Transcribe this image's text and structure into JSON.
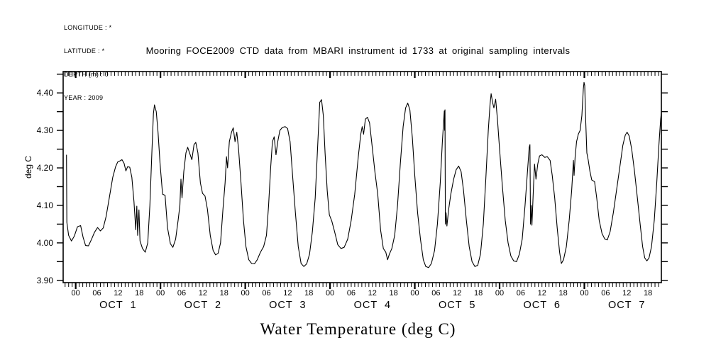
{
  "meta_block": {
    "lines": [
      "LONGITUDE : *",
      "LATITUDE : *",
      "DEPTH (m) : 0",
      "YEAR : 2009"
    ]
  },
  "title": "Mooring FOCE2009 CTD data from MBARI instrument id 1733 at original sampling intervals",
  "y_axis_title": "deg C",
  "x_axis_title": "Water Temperature (deg C)",
  "colors": {
    "line": "#000000",
    "axis": "#000000",
    "background": "#ffffff"
  },
  "chart_data": {
    "type": "line",
    "title": "Mooring FOCE2009 CTD data from MBARI instrument id 1733 at original sampling intervals",
    "xlabel": "Water Temperature (deg C)",
    "ylabel": "deg C",
    "grid": false,
    "legend": "none",
    "x_unit": "hours since OCT 1 00:00 (2009)",
    "x_range": [
      -3.55,
      165.8
    ],
    "y_range": [
      3.894,
      4.457
    ],
    "ylim_labeled": [
      3.9,
      4.4
    ],
    "y_major_tick_step": 0.1,
    "y_minor_tick_step": 0.05,
    "x_minor_tick_step_hours": 1,
    "x_label_step_hours": 6,
    "hour_label_cycle": [
      "00",
      "06",
      "12",
      "18"
    ],
    "hour_labels_start": 0,
    "hour_labels_end": 162,
    "day_labels": [
      {
        "label": "OCT  1",
        "noon_t": 12
      },
      {
        "label": "OCT  2",
        "noon_t": 36
      },
      {
        "label": "OCT  3",
        "noon_t": 60
      },
      {
        "label": "OCT  4",
        "noon_t": 84
      },
      {
        "label": "OCT  5",
        "noon_t": 108
      },
      {
        "label": "OCT  6",
        "noon_t": 132
      },
      {
        "label": "OCT  7",
        "noon_t": 156
      }
    ],
    "series": [
      {
        "name": "water temperature (deg C)",
        "points": [
          [
            -2.6,
            4.235
          ],
          [
            -2.5,
            4.055
          ],
          [
            -2.0,
            4.02
          ],
          [
            -1.2,
            4.005
          ],
          [
            -0.4,
            4.018
          ],
          [
            0.5,
            4.043
          ],
          [
            1.4,
            4.046
          ],
          [
            2.1,
            4.015
          ],
          [
            2.8,
            3.993
          ],
          [
            3.6,
            3.992
          ],
          [
            4.4,
            4.008
          ],
          [
            5.3,
            4.028
          ],
          [
            6.2,
            4.041
          ],
          [
            7.0,
            4.032
          ],
          [
            7.8,
            4.04
          ],
          [
            8.6,
            4.07
          ],
          [
            9.5,
            4.12
          ],
          [
            10.5,
            4.175
          ],
          [
            11.3,
            4.203
          ],
          [
            11.9,
            4.216
          ],
          [
            12.6,
            4.219
          ],
          [
            13.1,
            4.222
          ],
          [
            13.7,
            4.212
          ],
          [
            14.2,
            4.192
          ],
          [
            14.7,
            4.203
          ],
          [
            15.3,
            4.202
          ],
          [
            15.9,
            4.175
          ],
          [
            16.5,
            4.11
          ],
          [
            17.0,
            4.035
          ],
          [
            17.3,
            4.098
          ],
          [
            17.55,
            4.02
          ],
          [
            17.9,
            4.088
          ],
          [
            18.2,
            4.005
          ],
          [
            18.9,
            3.985
          ],
          [
            19.7,
            3.975
          ],
          [
            20.4,
            4.0
          ],
          [
            21.0,
            4.1
          ],
          [
            21.6,
            4.25
          ],
          [
            22.0,
            4.345
          ],
          [
            22.3,
            4.368
          ],
          [
            22.8,
            4.35
          ],
          [
            23.3,
            4.295
          ],
          [
            23.9,
            4.21
          ],
          [
            24.6,
            4.13
          ],
          [
            25.3,
            4.127
          ],
          [
            26.0,
            4.04
          ],
          [
            26.8,
            3.998
          ],
          [
            27.5,
            3.988
          ],
          [
            28.3,
            4.01
          ],
          [
            29.0,
            4.06
          ],
          [
            29.5,
            4.1
          ],
          [
            29.8,
            4.17
          ],
          [
            30.1,
            4.12
          ],
          [
            30.6,
            4.19
          ],
          [
            31.2,
            4.24
          ],
          [
            31.7,
            4.255
          ],
          [
            32.3,
            4.238
          ],
          [
            32.9,
            4.222
          ],
          [
            33.5,
            4.262
          ],
          [
            34.0,
            4.268
          ],
          [
            34.6,
            4.24
          ],
          [
            35.3,
            4.16
          ],
          [
            35.9,
            4.132
          ],
          [
            36.6,
            4.125
          ],
          [
            37.3,
            4.09
          ],
          [
            38.1,
            4.02
          ],
          [
            38.9,
            3.98
          ],
          [
            39.6,
            3.968
          ],
          [
            40.3,
            3.972
          ],
          [
            41.0,
            4.0
          ],
          [
            41.7,
            4.09
          ],
          [
            42.3,
            4.16
          ],
          [
            42.7,
            4.23
          ],
          [
            43.0,
            4.2
          ],
          [
            43.5,
            4.27
          ],
          [
            44.1,
            4.295
          ],
          [
            44.6,
            4.307
          ],
          [
            45.1,
            4.27
          ],
          [
            45.6,
            4.295
          ],
          [
            46.1,
            4.25
          ],
          [
            46.8,
            4.16
          ],
          [
            47.5,
            4.06
          ],
          [
            48.2,
            3.99
          ],
          [
            49.0,
            3.955
          ],
          [
            49.8,
            3.945
          ],
          [
            50.6,
            3.944
          ],
          [
            51.4,
            3.955
          ],
          [
            52.3,
            3.975
          ],
          [
            53.2,
            3.99
          ],
          [
            54.0,
            4.02
          ],
          [
            54.6,
            4.1
          ],
          [
            55.2,
            4.2
          ],
          [
            55.7,
            4.27
          ],
          [
            56.2,
            4.283
          ],
          [
            56.7,
            4.235
          ],
          [
            57.2,
            4.27
          ],
          [
            57.8,
            4.3
          ],
          [
            58.5,
            4.308
          ],
          [
            59.3,
            4.31
          ],
          [
            60.0,
            4.305
          ],
          [
            60.7,
            4.27
          ],
          [
            61.4,
            4.18
          ],
          [
            62.2,
            4.08
          ],
          [
            63.0,
            3.99
          ],
          [
            63.8,
            3.945
          ],
          [
            64.6,
            3.937
          ],
          [
            65.4,
            3.944
          ],
          [
            66.2,
            3.97
          ],
          [
            67.0,
            4.03
          ],
          [
            67.8,
            4.12
          ],
          [
            68.5,
            4.26
          ],
          [
            69.1,
            4.375
          ],
          [
            69.6,
            4.382
          ],
          [
            70.1,
            4.34
          ],
          [
            70.6,
            4.24
          ],
          [
            71.2,
            4.14
          ],
          [
            71.8,
            4.075
          ],
          [
            72.5,
            4.058
          ],
          [
            73.3,
            4.03
          ],
          [
            74.2,
            3.995
          ],
          [
            75.1,
            3.985
          ],
          [
            76.0,
            3.988
          ],
          [
            77.0,
            4.01
          ],
          [
            78.0,
            4.06
          ],
          [
            79.0,
            4.13
          ],
          [
            80.0,
            4.23
          ],
          [
            80.7,
            4.29
          ],
          [
            81.1,
            4.31
          ],
          [
            81.5,
            4.29
          ],
          [
            82.0,
            4.33
          ],
          [
            82.6,
            4.335
          ],
          [
            83.2,
            4.32
          ],
          [
            83.9,
            4.26
          ],
          [
            84.7,
            4.19
          ],
          [
            85.5,
            4.13
          ],
          [
            86.3,
            4.035
          ],
          [
            87.1,
            3.985
          ],
          [
            87.8,
            3.975
          ],
          [
            88.3,
            3.955
          ],
          [
            88.8,
            3.97
          ],
          [
            89.5,
            3.985
          ],
          [
            90.3,
            4.02
          ],
          [
            91.1,
            4.1
          ],
          [
            91.9,
            4.21
          ],
          [
            92.7,
            4.31
          ],
          [
            93.4,
            4.36
          ],
          [
            94.0,
            4.373
          ],
          [
            94.6,
            4.355
          ],
          [
            95.3,
            4.28
          ],
          [
            96.0,
            4.18
          ],
          [
            96.8,
            4.08
          ],
          [
            97.6,
            4.01
          ],
          [
            98.4,
            3.955
          ],
          [
            99.1,
            3.937
          ],
          [
            99.9,
            3.934
          ],
          [
            100.7,
            3.945
          ],
          [
            101.6,
            3.98
          ],
          [
            102.4,
            4.05
          ],
          [
            103.2,
            4.16
          ],
          [
            103.8,
            4.27
          ],
          [
            104.2,
            4.33
          ],
          [
            104.35,
            4.352
          ],
          [
            104.45,
            4.3
          ],
          [
            104.55,
            4.355
          ],
          [
            104.65,
            4.05
          ],
          [
            104.85,
            4.08
          ],
          [
            105.1,
            4.045
          ],
          [
            105.6,
            4.09
          ],
          [
            106.2,
            4.13
          ],
          [
            107.0,
            4.17
          ],
          [
            107.7,
            4.195
          ],
          [
            108.4,
            4.205
          ],
          [
            109.1,
            4.19
          ],
          [
            109.8,
            4.14
          ],
          [
            110.6,
            4.06
          ],
          [
            111.4,
            3.99
          ],
          [
            112.2,
            3.95
          ],
          [
            113.0,
            3.937
          ],
          [
            113.8,
            3.94
          ],
          [
            114.6,
            3.97
          ],
          [
            115.4,
            4.05
          ],
          [
            116.1,
            4.17
          ],
          [
            116.8,
            4.3
          ],
          [
            117.3,
            4.37
          ],
          [
            117.6,
            4.398
          ],
          [
            118.0,
            4.375
          ],
          [
            118.4,
            4.36
          ],
          [
            118.9,
            4.383
          ],
          [
            119.4,
            4.33
          ],
          [
            120.0,
            4.25
          ],
          [
            120.8,
            4.15
          ],
          [
            121.6,
            4.06
          ],
          [
            122.4,
            4.0
          ],
          [
            123.2,
            3.965
          ],
          [
            124.0,
            3.952
          ],
          [
            124.8,
            3.95
          ],
          [
            125.6,
            3.97
          ],
          [
            126.4,
            4.01
          ],
          [
            127.2,
            4.1
          ],
          [
            127.9,
            4.19
          ],
          [
            128.4,
            4.255
          ],
          [
            128.6,
            4.262
          ],
          [
            128.75,
            4.05
          ],
          [
            128.95,
            4.1
          ],
          [
            129.15,
            4.047
          ],
          [
            129.6,
            4.15
          ],
          [
            129.9,
            4.21
          ],
          [
            130.3,
            4.17
          ],
          [
            130.8,
            4.21
          ],
          [
            131.3,
            4.232
          ],
          [
            132.0,
            4.235
          ],
          [
            132.8,
            4.228
          ],
          [
            133.5,
            4.23
          ],
          [
            134.3,
            4.22
          ],
          [
            134.9,
            4.18
          ],
          [
            135.6,
            4.12
          ],
          [
            136.3,
            4.04
          ],
          [
            137.0,
            3.975
          ],
          [
            137.5,
            3.945
          ],
          [
            138.1,
            3.955
          ],
          [
            138.9,
            3.99
          ],
          [
            139.7,
            4.06
          ],
          [
            140.4,
            4.14
          ],
          [
            140.9,
            4.22
          ],
          [
            141.1,
            4.18
          ],
          [
            141.4,
            4.23
          ],
          [
            141.8,
            4.27
          ],
          [
            142.3,
            4.29
          ],
          [
            142.8,
            4.3
          ],
          [
            143.3,
            4.34
          ],
          [
            143.7,
            4.41
          ],
          [
            143.9,
            4.428
          ],
          [
            144.1,
            4.42
          ],
          [
            144.4,
            4.32
          ],
          [
            144.7,
            4.24
          ],
          [
            145.1,
            4.22
          ],
          [
            145.6,
            4.19
          ],
          [
            146.1,
            4.168
          ],
          [
            146.9,
            4.163
          ],
          [
            147.5,
            4.12
          ],
          [
            148.2,
            4.06
          ],
          [
            149.0,
            4.025
          ],
          [
            149.8,
            4.01
          ],
          [
            150.5,
            4.008
          ],
          [
            151.3,
            4.03
          ],
          [
            152.2,
            4.08
          ],
          [
            153.1,
            4.14
          ],
          [
            154.0,
            4.2
          ],
          [
            154.9,
            4.26
          ],
          [
            155.6,
            4.288
          ],
          [
            156.1,
            4.295
          ],
          [
            156.7,
            4.285
          ],
          [
            157.4,
            4.25
          ],
          [
            158.2,
            4.19
          ],
          [
            159.0,
            4.12
          ],
          [
            159.8,
            4.05
          ],
          [
            160.5,
            3.99
          ],
          [
            161.1,
            3.96
          ],
          [
            161.7,
            3.952
          ],
          [
            162.3,
            3.96
          ],
          [
            163.0,
            3.99
          ],
          [
            163.8,
            4.06
          ],
          [
            164.5,
            4.16
          ],
          [
            165.1,
            4.26
          ],
          [
            165.6,
            4.33
          ],
          [
            165.8,
            4.348
          ]
        ]
      }
    ]
  }
}
